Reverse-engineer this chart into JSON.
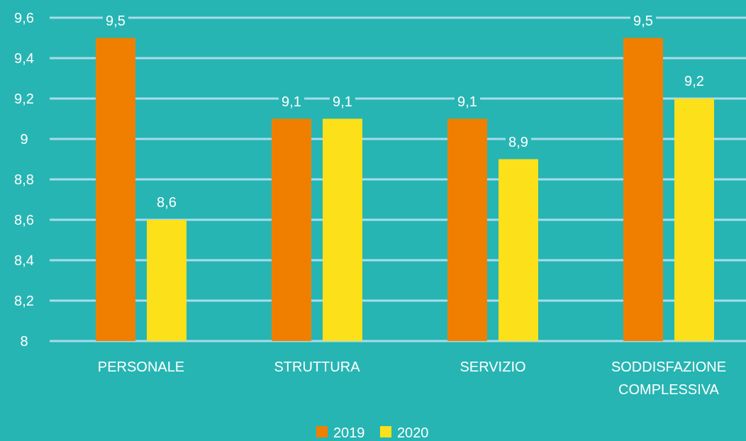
{
  "chart_data": {
    "type": "bar",
    "categories": [
      "PERSONALE",
      "STRUTTURA",
      "SERVIZIO",
      "SODDISFAZIONE COMPLESSIVA"
    ],
    "series": [
      {
        "name": "2019",
        "color": "#f07f00",
        "values": [
          9.5,
          9.1,
          9.1,
          9.5
        ],
        "value_labels": [
          "9,5",
          "9,1",
          "9,1",
          "9,5"
        ]
      },
      {
        "name": "2020",
        "color": "#fce01a",
        "values": [
          8.6,
          9.1,
          8.9,
          9.2
        ],
        "value_labels": [
          "8,6",
          "9,1",
          "8,9",
          "9,2"
        ]
      }
    ],
    "ylim": [
      8,
      9.6
    ],
    "yticks": [
      8,
      {
        "value": 8.2,
        "label": "8,2"
      },
      {
        "value": 8.4,
        "label": "8,4"
      },
      {
        "value": 8.6,
        "label": "8,6"
      },
      {
        "value": 8.8,
        "label": "8,8"
      },
      9,
      {
        "value": 9.2,
        "label": "9,2"
      },
      {
        "value": 9.4,
        "label": "9,4"
      },
      {
        "value": 9.6,
        "label": "9,6"
      }
    ],
    "grid": "y",
    "legend": "bottom"
  }
}
